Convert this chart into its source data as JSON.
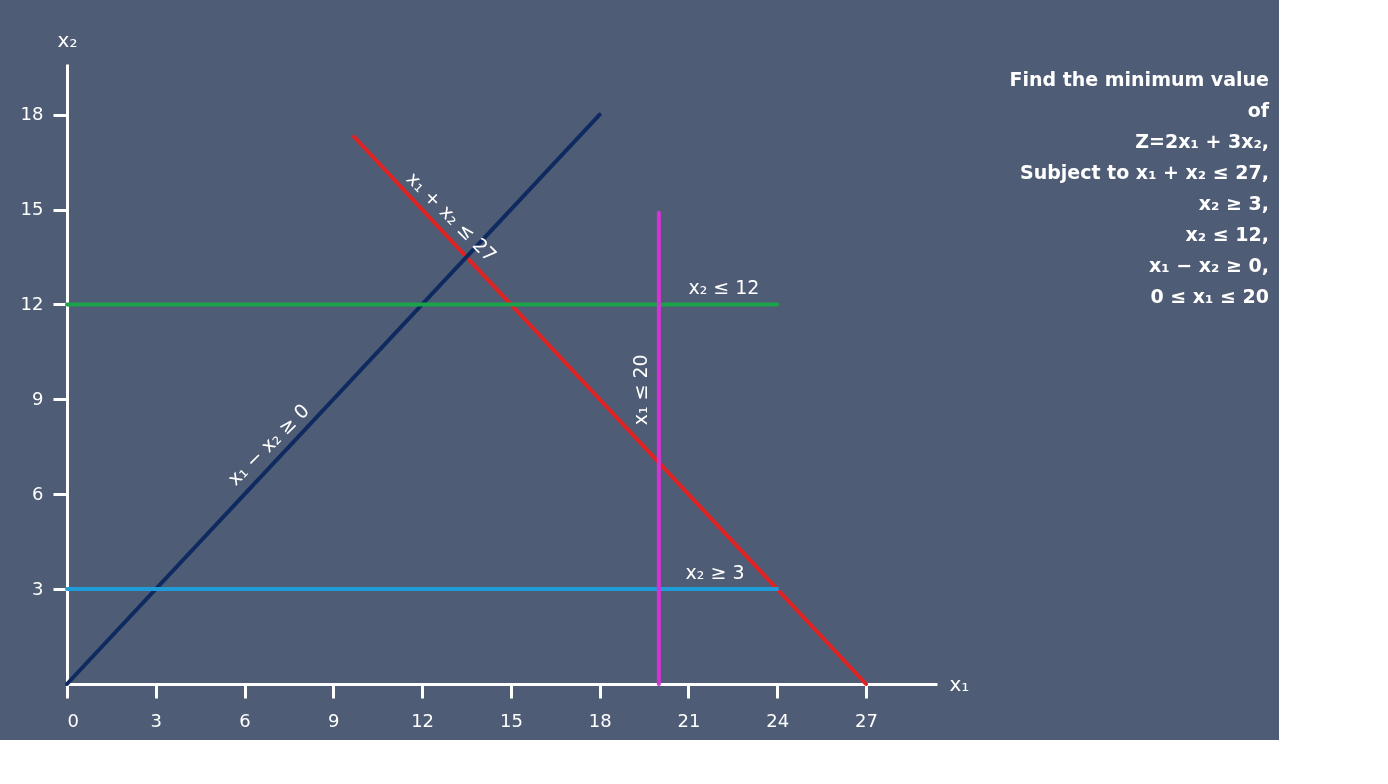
{
  "chart_data": {
    "type": "line",
    "xlabel": "x₁",
    "ylabel": "x₂",
    "xlim": [
      0,
      29.4
    ],
    "ylim": [
      0,
      19.6
    ],
    "xticks": [
      0,
      3,
      6,
      9,
      12,
      15,
      18,
      21,
      24,
      27
    ],
    "yticks": [
      3,
      6,
      9,
      12,
      15,
      18
    ],
    "grid": false,
    "series": [
      {
        "color": "#e02424",
        "x": [
          9.7,
          27
        ],
        "values": [
          17.3,
          0
        ]
      },
      {
        "color": "#0e2a60",
        "x": [
          0,
          18
        ],
        "values": [
          0,
          18
        ]
      },
      {
        "color": "#1aa34a",
        "x": [
          0,
          24
        ],
        "values": [
          12,
          12
        ]
      },
      {
        "color": "#1f9bd8",
        "x": [
          0,
          24
        ],
        "values": [
          3,
          3
        ]
      },
      {
        "color": "#d433d6",
        "x": [
          20,
          20
        ],
        "values": [
          0,
          14.9
        ]
      }
    ],
    "annotations": [
      {
        "text": "x₁ + x₂ ≤ 27",
        "x": 12.6,
        "y": 14.4
      },
      {
        "text": "x₁ − x₂ ≥ 0",
        "x": 7.2,
        "y": 7.2
      },
      {
        "text": "x₂ ≤ 12",
        "x": 22.2,
        "y": 12
      },
      {
        "text": "x₂ ≥ 3",
        "x": 21.9,
        "y": 3
      },
      {
        "text": "x₁ ≤ 20",
        "x": 20,
        "y": 9.3
      },
      "Find the minimum value",
      "of",
      "Z=2x₁ + 3x₂,",
      "Subject to x₁ + x₂ ≤ 27,",
      "x₂ ≥ 3,",
      "x₂ ≤  12,",
      "x₁ − x₂ ≥ 0,",
      "0 ≤ x₁ ≤ 20"
    ]
  }
}
